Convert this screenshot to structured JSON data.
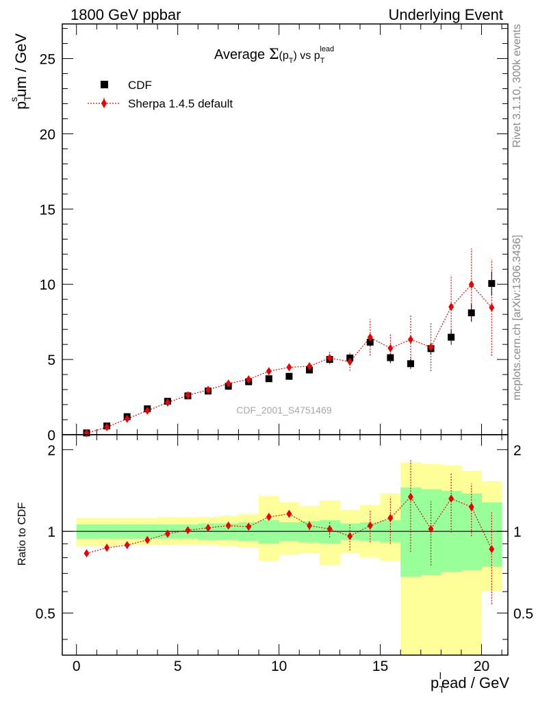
{
  "header": {
    "left": "1800 GeV ppbar",
    "right": "Underlying Event"
  },
  "side": {
    "rivet": "Rivet 3.1.10,  300k events",
    "mcplots": "mcplots.cern.ch [arXiv:1306.3436]"
  },
  "watermark": "CDF_2001_S4751469",
  "colors": {
    "data": "#000000",
    "mc": "#ee0000",
    "band_inner": "#99ff99",
    "band_outer": "#ffff99"
  },
  "chart_data": [
    {
      "type": "scatter",
      "title_parts": {
        "main": "Average ",
        "sigma": "Σ",
        "p": "(p",
        "psub": "T",
        "close": ")",
        "vs": " vs p",
        "vssub": "T",
        "vssup": "lead"
      },
      "ylabel": {
        "p": "p",
        "sup": "s",
        "sub": "T",
        "rest": "um / GeV"
      },
      "xlim": [
        -0.7,
        21.3
      ],
      "ylim": [
        0,
        27.3
      ],
      "yticks": [
        0,
        5,
        10,
        15,
        20,
        25
      ],
      "legend_position": "top-left",
      "series": [
        {
          "name": "CDF",
          "x": [
            0.5,
            1.5,
            2.5,
            3.5,
            4.5,
            5.5,
            6.5,
            7.5,
            8.5,
            9.5,
            10.5,
            11.5,
            12.5,
            13.5,
            14.5,
            15.5,
            16.5,
            17.5,
            18.5,
            19.5,
            20.5
          ],
          "y": [
            0.12,
            0.58,
            1.2,
            1.72,
            2.22,
            2.58,
            2.9,
            3.22,
            3.52,
            3.72,
            3.88,
            4.3,
            5.0,
            5.1,
            6.15,
            5.12,
            4.72,
            5.72,
            6.48,
            8.1,
            10.05
          ],
          "yerr": [
            0.02,
            0.03,
            0.04,
            0.05,
            0.06,
            0.07,
            0.08,
            0.08,
            0.1,
            0.12,
            0.14,
            0.15,
            0.2,
            0.2,
            0.25,
            0.3,
            0.35,
            0.4,
            0.5,
            0.6,
            0.8
          ]
        },
        {
          "name": "Sherpa 1.4.5 default",
          "x": [
            0.5,
            1.5,
            2.5,
            3.5,
            4.5,
            5.5,
            6.5,
            7.5,
            8.5,
            9.5,
            10.5,
            11.5,
            12.5,
            13.5,
            14.5,
            15.5,
            16.5,
            17.5,
            18.5,
            19.5,
            20.5
          ],
          "y": [
            0.1,
            0.5,
            1.06,
            1.6,
            2.14,
            2.62,
            2.98,
            3.4,
            3.68,
            4.22,
            4.48,
            4.55,
            5.1,
            4.85,
            6.47,
            5.75,
            6.33,
            5.82,
            8.5,
            9.98,
            8.45
          ],
          "yerr": [
            0.02,
            0.03,
            0.05,
            0.06,
            0.07,
            0.08,
            0.09,
            0.1,
            0.12,
            0.15,
            0.18,
            0.22,
            0.4,
            0.6,
            1.2,
            1.0,
            1.6,
            1.6,
            2.1,
            2.4,
            3.2
          ]
        }
      ]
    },
    {
      "type": "line",
      "ylabel": "Ratio to CDF",
      "xlabel": {
        "p": "p",
        "sup": "l",
        "sub": "T",
        "rest": "ead / GeV"
      },
      "xlim": [
        -0.7,
        21.3
      ],
      "ylim": [
        0.35,
        2.27
      ],
      "xticks": [
        0,
        5,
        10,
        15,
        20
      ],
      "yticks": [
        0.5,
        1,
        2
      ],
      "bands": {
        "inner": [
          [
            0.94,
            1.06
          ],
          [
            0.94,
            1.06
          ],
          [
            0.94,
            1.06
          ],
          [
            0.94,
            1.06
          ],
          [
            0.94,
            1.06
          ],
          [
            0.94,
            1.06
          ],
          [
            0.93,
            1.07
          ],
          [
            0.93,
            1.07
          ],
          [
            0.92,
            1.08
          ],
          [
            0.9,
            1.1
          ],
          [
            0.92,
            1.08
          ],
          [
            0.91,
            1.09
          ],
          [
            0.9,
            1.1
          ],
          [
            0.93,
            1.07
          ],
          [
            0.92,
            1.08
          ],
          [
            0.91,
            1.1
          ],
          [
            0.68,
            1.45
          ],
          [
            0.69,
            1.43
          ],
          [
            0.71,
            1.41
          ],
          [
            0.72,
            1.38
          ],
          [
            0.74,
            1.28
          ]
        ],
        "outer": [
          [
            0.88,
            1.12
          ],
          [
            0.88,
            1.12
          ],
          [
            0.89,
            1.12
          ],
          [
            0.89,
            1.12
          ],
          [
            0.89,
            1.13
          ],
          [
            0.89,
            1.13
          ],
          [
            0.89,
            1.13
          ],
          [
            0.88,
            1.14
          ],
          [
            0.87,
            1.16
          ],
          [
            0.78,
            1.35
          ],
          [
            0.82,
            1.28
          ],
          [
            0.83,
            1.24
          ],
          [
            0.75,
            1.3
          ],
          [
            0.83,
            1.2
          ],
          [
            0.8,
            1.25
          ],
          [
            0.78,
            1.38
          ],
          [
            0.35,
            1.8
          ],
          [
            0.35,
            1.77
          ],
          [
            0.35,
            1.75
          ],
          [
            0.35,
            1.67
          ],
          [
            0.6,
            1.53
          ]
        ]
      },
      "series": [
        {
          "name": "Sherpa 1.4.5 default",
          "x": [
            0.5,
            1.5,
            2.5,
            3.5,
            4.5,
            5.5,
            6.5,
            7.5,
            8.5,
            9.5,
            10.5,
            11.5,
            12.5,
            13.5,
            14.5,
            15.5,
            16.5,
            17.5,
            18.5,
            19.5,
            20.5
          ],
          "y": [
            0.83,
            0.87,
            0.89,
            0.93,
            0.98,
            1.01,
            1.03,
            1.05,
            1.04,
            1.13,
            1.16,
            1.05,
            1.02,
            0.96,
            1.05,
            1.12,
            1.34,
            1.02,
            1.32,
            1.23,
            0.86
          ],
          "yerr": [
            0.01,
            0.01,
            0.01,
            0.01,
            0.01,
            0.01,
            0.01,
            0.02,
            0.02,
            0.03,
            0.03,
            0.04,
            0.07,
            0.11,
            0.14,
            0.22,
            0.5,
            0.27,
            0.33,
            0.27,
            0.32
          ]
        }
      ]
    }
  ]
}
